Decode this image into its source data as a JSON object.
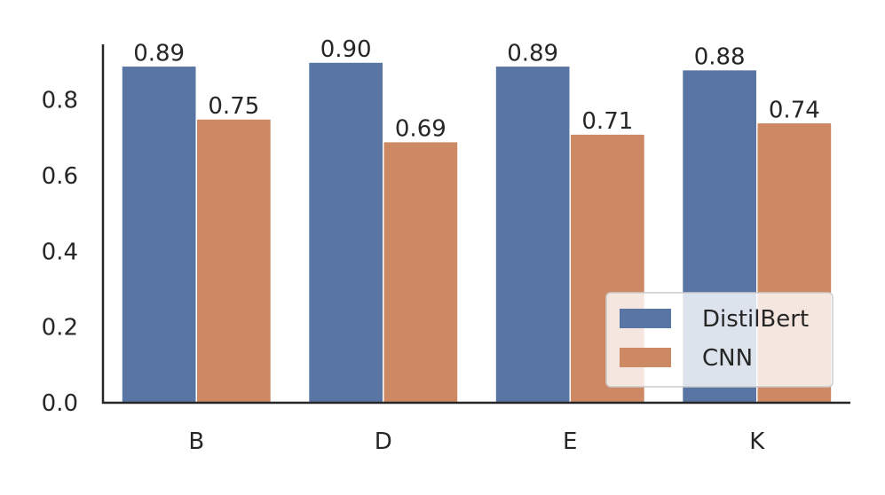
{
  "chart_data": {
    "type": "bar",
    "categories": [
      "B",
      "D",
      "E",
      "K"
    ],
    "series": [
      {
        "name": "DistilBert",
        "color": "#5875a4",
        "values": [
          0.89,
          0.9,
          0.89,
          0.88
        ],
        "value_labels": [
          "0.89",
          "0.90",
          "0.89",
          "0.88"
        ]
      },
      {
        "name": "CNN",
        "color": "#cc8963",
        "values": [
          0.75,
          0.69,
          0.71,
          0.74
        ],
        "value_labels": [
          "0.75",
          "0.69",
          "0.71",
          "0.74"
        ]
      }
    ],
    "ylim": [
      0,
      0.947
    ],
    "yticks": [
      {
        "value": 0,
        "label": "0.0"
      },
      0.2,
      0.4,
      0.6,
      0.8
    ],
    "grid": false,
    "legend": "lower right"
  }
}
